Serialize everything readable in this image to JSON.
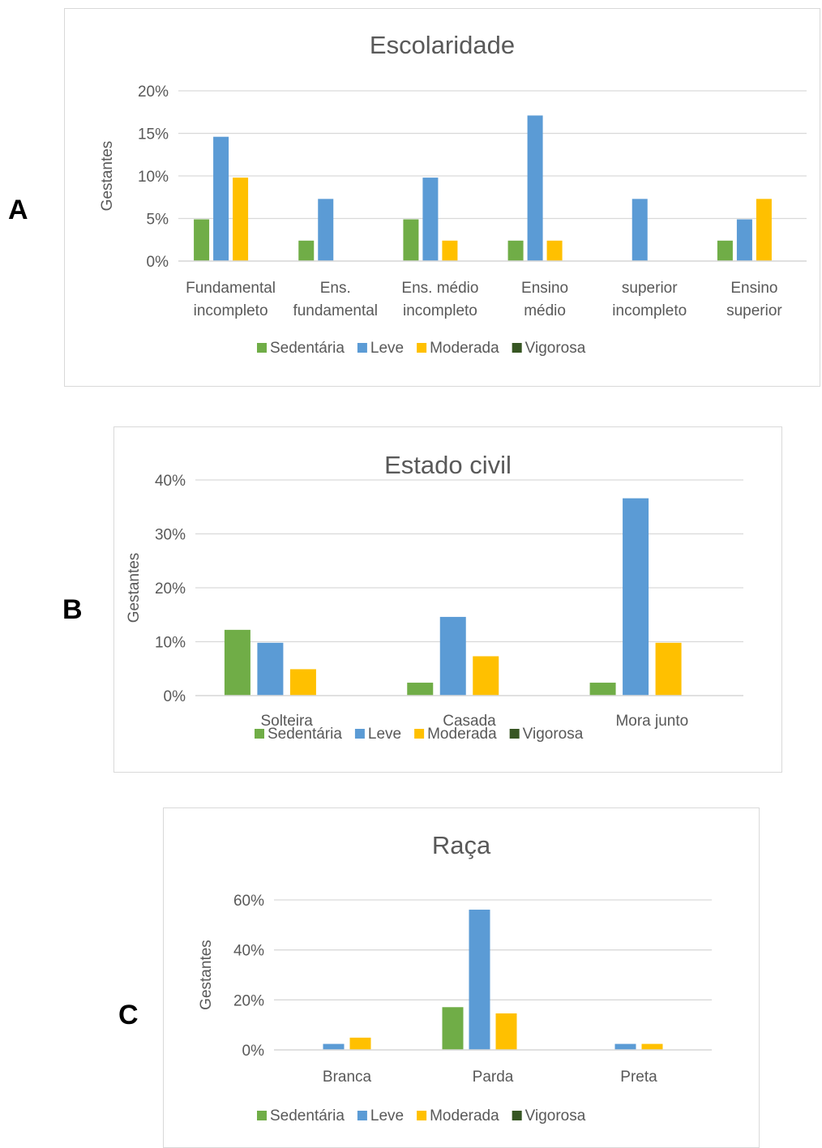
{
  "panels": [
    {
      "letter": "A"
    },
    {
      "letter": "B"
    },
    {
      "letter": "C"
    }
  ],
  "colors": {
    "Sedentária": "#70ad47",
    "Leve": "#5b9bd5",
    "Moderada": "#ffc000",
    "Vigorosa": "#375623",
    "grid": "#d9d9d9",
    "axis": "#d9d9d9"
  },
  "chart_data": [
    {
      "type": "bar",
      "title": "Escolaridade",
      "xlabel": "",
      "ylabel": "Gestantes",
      "ylim": [
        0,
        20
      ],
      "yticks": [
        "0%",
        "5%",
        "10%",
        "15%",
        "20%"
      ],
      "categories": [
        [
          "Fundamental",
          "incompleto"
        ],
        [
          "Ens.",
          "fundamental"
        ],
        [
          "Ens. médio",
          "incompleto"
        ],
        [
          "Ensino",
          "médio"
        ],
        [
          "superior",
          "incompleto"
        ],
        [
          "Ensino",
          "superior"
        ]
      ],
      "series": [
        {
          "name": "Sedentária",
          "values": [
            4.9,
            2.4,
            4.9,
            2.4,
            0,
            2.4
          ]
        },
        {
          "name": "Leve",
          "values": [
            14.6,
            7.3,
            9.8,
            17.1,
            7.3,
            4.9
          ]
        },
        {
          "name": "Moderada",
          "values": [
            9.8,
            0,
            2.4,
            2.4,
            0,
            7.3
          ]
        },
        {
          "name": "Vigorosa",
          "values": [
            0,
            0,
            0,
            0,
            0,
            0
          ]
        }
      ],
      "legend": [
        "Sedentária",
        "Leve",
        "Moderada",
        "Vigorosa"
      ],
      "legend_position": "bottom",
      "grid": true
    },
    {
      "type": "bar",
      "title": "Estado civil",
      "xlabel": "",
      "ylabel": "Gestantes",
      "ylim": [
        0,
        40
      ],
      "yticks": [
        "0%",
        "10%",
        "20%",
        "30%",
        "40%"
      ],
      "categories": [
        [
          "Solteira"
        ],
        [
          "Casada"
        ],
        [
          "Mora junto"
        ]
      ],
      "series": [
        {
          "name": "Sedentária",
          "values": [
            12.2,
            2.4,
            2.4
          ]
        },
        {
          "name": "Leve",
          "values": [
            9.8,
            14.6,
            36.6
          ]
        },
        {
          "name": "Moderada",
          "values": [
            4.9,
            7.3,
            9.8
          ]
        },
        {
          "name": "Vigorosa",
          "values": [
            0,
            0,
            0
          ]
        }
      ],
      "legend": [
        "Sedentária",
        "Leve",
        "Moderada",
        "Vigorosa"
      ],
      "legend_position": "bottom",
      "grid": true
    },
    {
      "type": "bar",
      "title": "Raça",
      "xlabel": "",
      "ylabel": "Gestantes",
      "ylim": [
        0,
        60
      ],
      "yticks": [
        "0%",
        "20%",
        "40%",
        "60%"
      ],
      "categories": [
        [
          "Branca"
        ],
        [
          "Parda"
        ],
        [
          "Preta"
        ]
      ],
      "series": [
        {
          "name": "Sedentária",
          "values": [
            0,
            17.1,
            0
          ]
        },
        {
          "name": "Leve",
          "values": [
            2.4,
            56.1,
            2.4
          ]
        },
        {
          "name": "Moderada",
          "values": [
            4.9,
            14.6,
            2.4
          ]
        },
        {
          "name": "Vigorosa",
          "values": [
            0,
            0,
            0
          ]
        }
      ],
      "legend": [
        "Sedentária",
        "Leve",
        "Moderada",
        "Vigorosa"
      ],
      "legend_position": "bottom",
      "grid": true
    }
  ]
}
